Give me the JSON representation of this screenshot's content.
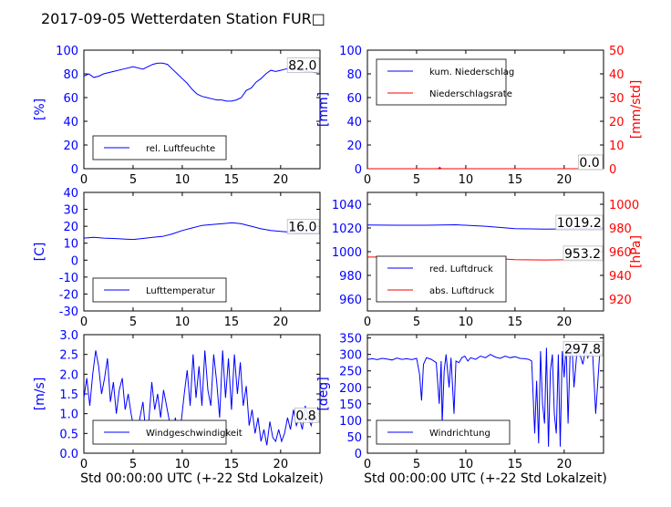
{
  "page": {
    "title": "2017-09-05 Wetterdaten Station FUR□"
  },
  "colors": {
    "left_axis": "#0000ff",
    "right_axis": "#ff0000",
    "line_blue": "#0000ff",
    "line_red": "#ff0000"
  },
  "chart_data": [
    {
      "id": "humidity",
      "type": "line",
      "ylabel": "[%]",
      "ylim": [
        0,
        100
      ],
      "yticks": [
        0,
        20,
        40,
        60,
        80,
        100
      ],
      "xlim": [
        0,
        24
      ],
      "xticks": [
        0,
        5,
        10,
        15,
        20
      ],
      "xlabel": "",
      "legend_position": "lower-left",
      "last_value_label": "82.0",
      "series": [
        {
          "name": "rel. Luftfeuchte",
          "axis": "left",
          "color": "blue",
          "x": [
            0,
            0.5,
            1,
            1.5,
            2,
            3,
            4,
            5,
            6,
            6.5,
            7,
            7.5,
            8,
            8.5,
            9,
            9.5,
            10,
            10.5,
            11,
            11.5,
            12,
            12.5,
            13,
            13.5,
            14,
            14.5,
            15,
            15.5,
            16,
            16.5,
            17,
            17.5,
            18,
            18.5,
            19,
            19.5,
            20,
            20.5,
            21,
            21.5,
            22,
            22.5,
            23,
            23.5,
            24
          ],
          "y": [
            78,
            80,
            77,
            78,
            80,
            82,
            84,
            86,
            84,
            86,
            88,
            89,
            89,
            88,
            84,
            80,
            76,
            72,
            67,
            63,
            61,
            60,
            59,
            58,
            58,
            57,
            57,
            58,
            60,
            66,
            68,
            73,
            76,
            80,
            83,
            82,
            83,
            84,
            85,
            84,
            83,
            82,
            82,
            81,
            82
          ]
        }
      ]
    },
    {
      "id": "precip",
      "type": "line",
      "ylabel": "[mm]",
      "ylim": [
        0,
        100
      ],
      "yticks": [
        0,
        20,
        40,
        60,
        80,
        100
      ],
      "ylabel_right": "[mm/std]",
      "ylim_right": [
        0,
        50
      ],
      "yticks_right": [
        0,
        10,
        20,
        30,
        40,
        50
      ],
      "xlim": [
        0,
        24
      ],
      "xticks": [
        0,
        5,
        10,
        15,
        20
      ],
      "xlabel": "",
      "legend_position": "upper-left",
      "last_value_label": "0.0",
      "last_value_label_2": "0.0",
      "series": [
        {
          "name": "kum. Niederschlag",
          "axis": "left",
          "color": "blue",
          "x": [
            0,
            24
          ],
          "y": [
            0,
            0
          ]
        },
        {
          "name": "Niederschlagsrate",
          "axis": "right",
          "color": "red",
          "x": [
            0,
            7.2,
            7.35,
            7.5,
            24
          ],
          "y": [
            0,
            0,
            0.6,
            0,
            0
          ]
        }
      ]
    },
    {
      "id": "temperature",
      "type": "line",
      "ylabel": "[C]",
      "ylim": [
        -30,
        40
      ],
      "yticks": [
        -30,
        -20,
        -10,
        0,
        10,
        20,
        30,
        40
      ],
      "xlim": [
        0,
        24
      ],
      "xticks": [
        0,
        5,
        10,
        15,
        20
      ],
      "xlabel": "",
      "legend_position": "lower-left",
      "last_value_label": "16.0",
      "series": [
        {
          "name": "Lufttemperatur",
          "axis": "left",
          "color": "blue",
          "x": [
            0,
            1,
            2,
            3,
            4,
            5,
            6,
            7,
            8,
            9,
            10,
            11,
            12,
            13,
            14,
            15,
            15.5,
            16,
            17,
            18,
            19,
            20,
            21,
            22,
            23,
            24
          ],
          "y": [
            13,
            13.5,
            13,
            12.8,
            12.5,
            12.2,
            12.8,
            13.5,
            14,
            15.5,
            17.5,
            19,
            20.5,
            21,
            21.5,
            22,
            21.8,
            21.5,
            20,
            18.5,
            17.5,
            17,
            16.5,
            16,
            16,
            16
          ]
        }
      ]
    },
    {
      "id": "pressure",
      "type": "line",
      "ylabel": "",
      "ylim": [
        950,
        1050
      ],
      "yticks": [
        960,
        980,
        1000,
        1020,
        1040
      ],
      "ylabel_right": "[hPa]",
      "ylim_right": [
        910,
        1010
      ],
      "yticks_right": [
        920,
        940,
        960,
        980,
        1000
      ],
      "xlim": [
        0,
        24
      ],
      "xticks": [
        0,
        5,
        10,
        15,
        20
      ],
      "xlabel": "",
      "legend_position": "lower-left",
      "last_value_label": "1019.2",
      "last_value_label_2": "953.2",
      "series": [
        {
          "name": "red. Luftdruck",
          "axis": "left",
          "color": "blue",
          "x": [
            0,
            3,
            6,
            9,
            12,
            15,
            18,
            21,
            24
          ],
          "y": [
            1022.5,
            1022.3,
            1022.3,
            1022.7,
            1021.5,
            1019.5,
            1019,
            1019.2,
            1019.2
          ]
        },
        {
          "name": "abs. Luftdruck",
          "axis": "right",
          "color": "red",
          "x": [
            0,
            3,
            6,
            9,
            12,
            15,
            18,
            21,
            24
          ],
          "y": [
            955.5,
            955.4,
            955.3,
            955.6,
            954.8,
            953.3,
            953,
            953.2,
            953.2
          ]
        }
      ]
    },
    {
      "id": "windspeed",
      "type": "line",
      "ylabel": "[m/s]",
      "ylim": [
        0,
        3
      ],
      "yticks": [
        "0.0",
        "0.5",
        "1.0",
        "1.5",
        "2.0",
        "2.5",
        "3.0"
      ],
      "xlim": [
        0,
        24
      ],
      "xticks": [
        0,
        5,
        10,
        15,
        20
      ],
      "xlabel": "Std 00:00:00 UTC (+-22 Std Lokalzeit)",
      "legend_position": "lower-left",
      "last_value_label": "0.8",
      "series": [
        {
          "name": "Windgeschwindigkeit",
          "axis": "left",
          "color": "blue",
          "x": [
            0,
            0.3,
            0.6,
            0.9,
            1.2,
            1.5,
            1.8,
            2.1,
            2.4,
            2.7,
            3,
            3.3,
            3.6,
            3.9,
            4.2,
            4.5,
            4.8,
            5.1,
            5.4,
            5.7,
            6,
            6.3,
            6.6,
            6.9,
            7.2,
            7.5,
            7.8,
            8.1,
            8.4,
            8.7,
            9,
            9.3,
            9.6,
            9.9,
            10.2,
            10.5,
            10.8,
            11.1,
            11.4,
            11.7,
            12,
            12.3,
            12.6,
            12.9,
            13.2,
            13.5,
            13.8,
            14.1,
            14.4,
            14.7,
            15,
            15.3,
            15.6,
            15.9,
            16.2,
            16.5,
            16.8,
            17.1,
            17.4,
            17.7,
            18,
            18.3,
            18.6,
            18.9,
            19.2,
            19.5,
            19.8,
            20.1,
            20.4,
            20.7,
            21,
            21.3,
            21.6,
            21.9,
            22.2,
            22.5,
            22.8,
            23.1,
            23.4,
            23.7,
            24
          ],
          "y": [
            1.4,
            1.9,
            1.2,
            2.0,
            2.6,
            2.2,
            1.5,
            1.9,
            2.4,
            1.3,
            1.8,
            1.0,
            1.6,
            1.9,
            1.1,
            1.5,
            1.0,
            0.6,
            0.3,
            0.9,
            1.3,
            0.5,
            0.8,
            1.8,
            1.1,
            1.5,
            0.9,
            1.6,
            1.2,
            0.8,
            0.5,
            0.9,
            0.3,
            0.8,
            1.5,
            2.1,
            1.2,
            2.5,
            1.4,
            2.2,
            1.2,
            2.6,
            1.6,
            1.2,
            2.5,
            1.8,
            0.9,
            2.6,
            1.4,
            2.4,
            1.1,
            2.5,
            1.5,
            2.3,
            1.2,
            1.7,
            0.7,
            1.1,
            0.5,
            0.9,
            0.3,
            0.6,
            0.2,
            0.8,
            0.4,
            0.3,
            0.6,
            0.3,
            0.5,
            0.9,
            0.6,
            1.1,
            0.7,
            0.9,
            0.6,
            1.2,
            0.9,
            0.7,
            1.0,
            0.8,
            0.8
          ]
        }
      ]
    },
    {
      "id": "winddir",
      "type": "line",
      "ylabel": "[deg]",
      "ylim": [
        0,
        360
      ],
      "yticks": [
        0,
        50,
        100,
        150,
        200,
        250,
        300,
        350
      ],
      "xlim": [
        0,
        24
      ],
      "xticks": [
        0,
        5,
        10,
        15,
        20
      ],
      "xlabel": "Std 00:00:00 UTC (+-22 Std Lokalzeit)",
      "legend_position": "lower-left",
      "last_value_label": "297.8",
      "series": [
        {
          "name": "Windrichtung",
          "axis": "left",
          "color": "blue",
          "x": [
            0,
            0.5,
            1,
            1.5,
            2,
            2.5,
            3,
            3.5,
            4,
            4.5,
            5,
            5.3,
            5.5,
            5.7,
            6,
            6.5,
            7,
            7.3,
            7.5,
            7.6,
            7.8,
            8,
            8.3,
            8.5,
            8.8,
            9,
            9.3,
            9.6,
            9.9,
            10.2,
            10.5,
            11,
            11.5,
            12,
            12.5,
            13,
            13.5,
            14,
            14.5,
            15,
            15.5,
            16,
            16.4,
            16.7,
            17,
            17.2,
            17.4,
            17.6,
            17.8,
            18,
            18.2,
            18.4,
            18.6,
            18.8,
            19,
            19.2,
            19.4,
            19.6,
            19.8,
            20,
            20.2,
            20.4,
            20.6,
            20.8,
            21,
            21.3,
            21.6,
            21.9,
            22.2,
            22.4,
            22.6,
            22.9,
            23.2,
            23.6,
            24
          ],
          "y": [
            285,
            287,
            284,
            288,
            286,
            283,
            289,
            285,
            287,
            284,
            288,
            240,
            160,
            270,
            290,
            285,
            275,
            150,
            280,
            90,
            250,
            300,
            200,
            290,
            120,
            280,
            275,
            290,
            295,
            280,
            290,
            285,
            295,
            290,
            300,
            292,
            288,
            295,
            290,
            293,
            288,
            287,
            285,
            280,
            60,
            220,
            30,
            310,
            150,
            90,
            320,
            20,
            250,
            300,
            120,
            60,
            300,
            20,
            310,
            230,
            330,
            90,
            300,
            320,
            200,
            310,
            300,
            270,
            320,
            290,
            305,
            300,
            120,
            300,
            298
          ]
        }
      ]
    }
  ]
}
